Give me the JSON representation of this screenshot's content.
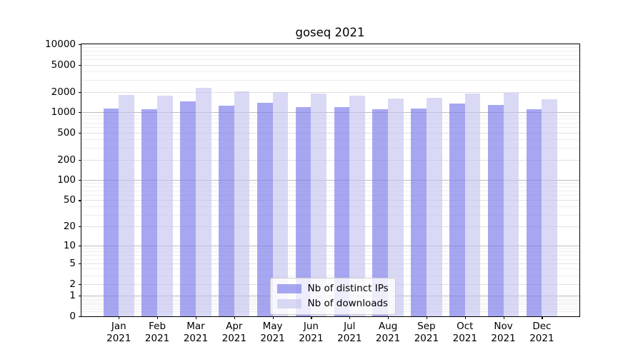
{
  "title": "goseq 2021",
  "chart_data": {
    "type": "bar",
    "title": "goseq 2021",
    "categories": [
      "Jan 2021",
      "Feb 2021",
      "Mar 2021",
      "Apr 2021",
      "May 2021",
      "Jun 2021",
      "Jul 2021",
      "Aug 2021",
      "Sep 2021",
      "Oct 2021",
      "Nov 2021",
      "Dec 2021"
    ],
    "series": [
      {
        "name": "Nb of distinct IPs",
        "color": "rgba(125,125,235,0.68)",
        "values": [
          1147,
          1120,
          1461,
          1264,
          1372,
          1196,
          1196,
          1120,
          1131,
          1349,
          1294,
          1103
        ]
      },
      {
        "name": "Nb of downloads",
        "color": "rgba(193,193,240,0.62)",
        "values": [
          1817,
          1747,
          2279,
          2048,
          1985,
          1905,
          1747,
          1587,
          1649,
          1905,
          1938,
          1549
        ]
      }
    ],
    "y_scale": "log10(value+1)",
    "ylim": [
      0,
      10000
    ],
    "y_ticks": [
      10000,
      5000,
      2000,
      1000,
      500,
      200,
      100,
      50,
      20,
      10,
      5,
      2,
      1,
      0
    ],
    "grid": true,
    "legend_position": "lower center",
    "colors": {
      "major_grid": "#bdbdbd",
      "mid_grid": "#e0e0e0",
      "minor_grid": "#ededed"
    }
  }
}
